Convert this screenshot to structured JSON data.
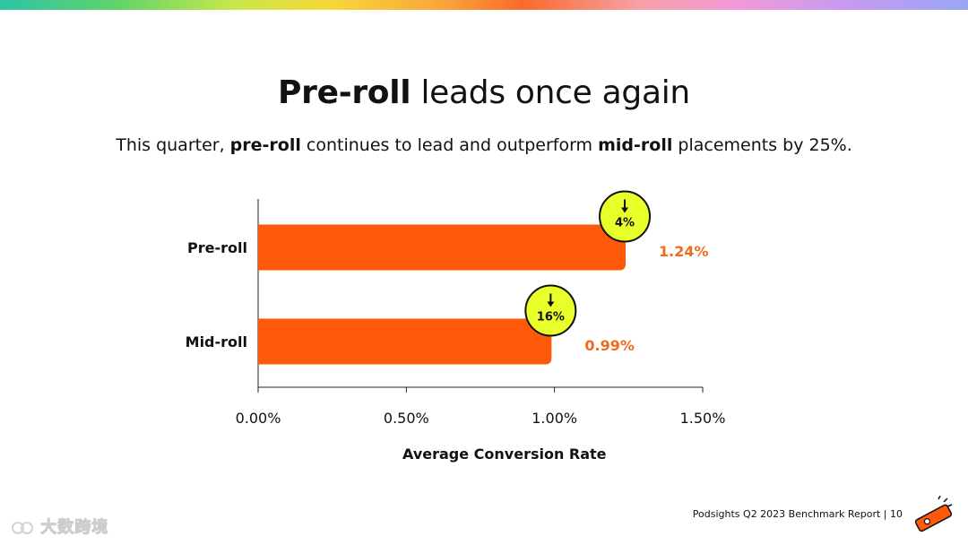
{
  "header": {
    "title_bold": "Pre-roll",
    "title_rest": " leads once again"
  },
  "subtitle": {
    "part1": "This quarter, ",
    "bold1": "pre-roll",
    "part2": " continues to lead and outperform ",
    "bold2": "mid-roll",
    "part3": " placements by 25%."
  },
  "chart_data": {
    "type": "bar",
    "orientation": "horizontal",
    "categories": [
      "Pre-roll",
      "Mid-roll"
    ],
    "values": [
      1.24,
      0.99
    ],
    "value_labels": [
      "1.24%",
      "0.99%"
    ],
    "change_badges": [
      {
        "label": "4%",
        "direction": "down"
      },
      {
        "label": "16%",
        "direction": "down"
      }
    ],
    "xlabel": "Average Conversion Rate",
    "ylabel": "",
    "xlim": [
      0,
      1.5
    ],
    "ticks": [
      0,
      0.5,
      1.0,
      1.5
    ],
    "tick_labels": [
      "0.00%",
      "0.50%",
      "1.00%",
      "1.50%"
    ],
    "grid": false,
    "colors": {
      "bar": "#ff5a0a",
      "value_label": "#f26a1b",
      "badge_fill": "#e8ff2a",
      "badge_stroke": "#111111"
    }
  },
  "footer": {
    "report": "Podsights Q2 2023 Benchmark Report | 10",
    "logo_icon": "podsights-logo-icon"
  },
  "watermark": {
    "text": "大数跨境"
  }
}
